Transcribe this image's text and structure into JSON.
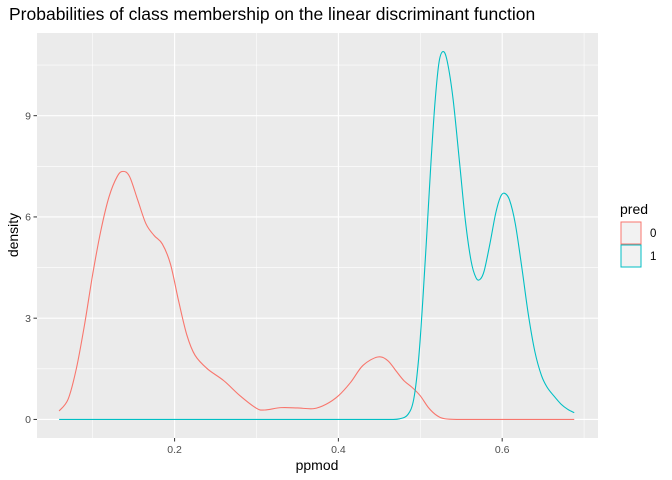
{
  "chart_data": {
    "type": "line",
    "title": "Probabilities of class membership on the linear discriminant function",
    "xlabel": "ppmod",
    "ylabel": "density",
    "xlim": [
      0.032,
      0.717
    ],
    "ylim": [
      -0.55,
      11.45
    ],
    "x_ticks": [
      0.2,
      0.4,
      0.6
    ],
    "x_tick_labels": [
      "0.2",
      "0.4",
      "0.6"
    ],
    "y_ticks": [
      0,
      3,
      6,
      9
    ],
    "y_tick_labels": [
      "0",
      "3",
      "6",
      "9"
    ],
    "grid": true,
    "legend": {
      "title": "pred",
      "position": "right"
    },
    "series": [
      {
        "name": "0",
        "color": "#F8766D",
        "points": [
          [
            0.059,
            0.25
          ],
          [
            0.07,
            0.6
          ],
          [
            0.08,
            1.5
          ],
          [
            0.09,
            2.8
          ],
          [
            0.1,
            4.3
          ],
          [
            0.11,
            5.6
          ],
          [
            0.12,
            6.6
          ],
          [
            0.13,
            7.2
          ],
          [
            0.137,
            7.35
          ],
          [
            0.145,
            7.2
          ],
          [
            0.155,
            6.5
          ],
          [
            0.165,
            5.8
          ],
          [
            0.175,
            5.45
          ],
          [
            0.185,
            5.2
          ],
          [
            0.195,
            4.6
          ],
          [
            0.205,
            3.5
          ],
          [
            0.215,
            2.5
          ],
          [
            0.225,
            1.9
          ],
          [
            0.24,
            1.5
          ],
          [
            0.26,
            1.15
          ],
          [
            0.28,
            0.7
          ],
          [
            0.3,
            0.33
          ],
          [
            0.31,
            0.28
          ],
          [
            0.33,
            0.35
          ],
          [
            0.35,
            0.34
          ],
          [
            0.37,
            0.32
          ],
          [
            0.385,
            0.45
          ],
          [
            0.4,
            0.7
          ],
          [
            0.415,
            1.1
          ],
          [
            0.43,
            1.6
          ],
          [
            0.448,
            1.85
          ],
          [
            0.46,
            1.75
          ],
          [
            0.47,
            1.45
          ],
          [
            0.48,
            1.15
          ],
          [
            0.49,
            0.95
          ],
          [
            0.5,
            0.7
          ],
          [
            0.51,
            0.35
          ],
          [
            0.52,
            0.12
          ],
          [
            0.53,
            0.02
          ],
          [
            0.55,
            0.0
          ],
          [
            0.6,
            0.0
          ],
          [
            0.65,
            0.0
          ],
          [
            0.688,
            0.0
          ]
        ]
      },
      {
        "name": "1",
        "color": "#00BFC4",
        "points": [
          [
            0.059,
            0.0
          ],
          [
            0.1,
            0.0
          ],
          [
            0.2,
            0.0
          ],
          [
            0.3,
            0.0
          ],
          [
            0.4,
            0.0
          ],
          [
            0.46,
            0.0
          ],
          [
            0.475,
            0.02
          ],
          [
            0.485,
            0.15
          ],
          [
            0.492,
            0.6
          ],
          [
            0.498,
            1.8
          ],
          [
            0.503,
            3.5
          ],
          [
            0.508,
            5.5
          ],
          [
            0.513,
            7.6
          ],
          [
            0.518,
            9.4
          ],
          [
            0.523,
            10.6
          ],
          [
            0.528,
            10.9
          ],
          [
            0.533,
            10.6
          ],
          [
            0.54,
            9.5
          ],
          [
            0.548,
            7.6
          ],
          [
            0.555,
            5.9
          ],
          [
            0.562,
            4.7
          ],
          [
            0.568,
            4.2
          ],
          [
            0.573,
            4.15
          ],
          [
            0.578,
            4.4
          ],
          [
            0.585,
            5.2
          ],
          [
            0.592,
            6.1
          ],
          [
            0.598,
            6.6
          ],
          [
            0.603,
            6.7
          ],
          [
            0.609,
            6.5
          ],
          [
            0.616,
            5.8
          ],
          [
            0.624,
            4.5
          ],
          [
            0.632,
            3.1
          ],
          [
            0.64,
            2.0
          ],
          [
            0.648,
            1.3
          ],
          [
            0.655,
            0.95
          ],
          [
            0.663,
            0.7
          ],
          [
            0.672,
            0.45
          ],
          [
            0.68,
            0.3
          ],
          [
            0.688,
            0.2
          ]
        ]
      }
    ]
  }
}
